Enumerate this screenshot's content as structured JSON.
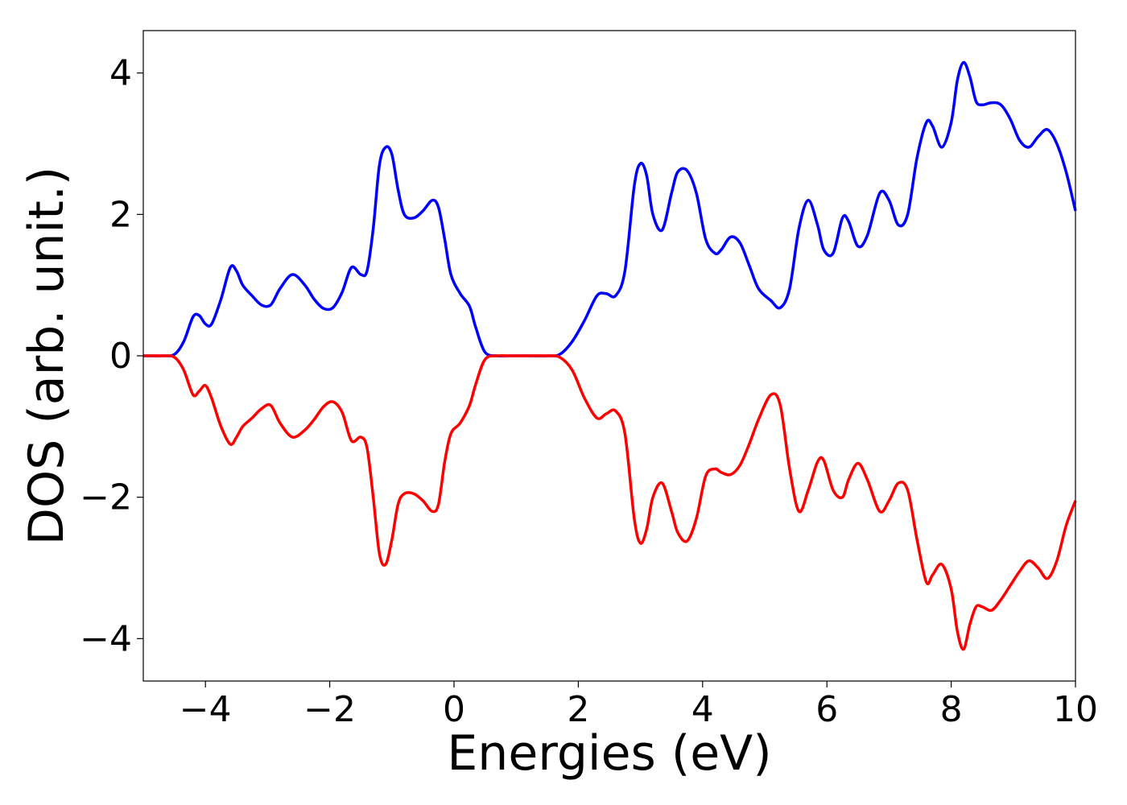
{
  "chart_data": {
    "type": "line",
    "title": "",
    "xlabel": "Energies (eV)",
    "ylabel": "DOS (arb. unit.)",
    "xlim": [
      -5,
      10
    ],
    "ylim": [
      -4.6,
      4.6
    ],
    "xticks": [
      -4,
      -2,
      0,
      2,
      4,
      6,
      8,
      10
    ],
    "xtick_labels": [
      "−4",
      "−2",
      "0",
      "2",
      "4",
      "6",
      "8",
      "10"
    ],
    "yticks": [
      4,
      2,
      0,
      -2,
      -4
    ],
    "ytick_labels": [
      "4",
      "2",
      "0",
      "−2",
      "−4"
    ],
    "grid": false,
    "legend": "none",
    "series": [
      {
        "color": "#0000ff",
        "x": [
          -5.0,
          -4.7,
          -4.5,
          -4.35,
          -4.2,
          -4.1,
          -4.0,
          -3.9,
          -3.75,
          -3.6,
          -3.5,
          -3.4,
          -3.25,
          -3.1,
          -2.95,
          -2.8,
          -2.6,
          -2.4,
          -2.25,
          -2.1,
          -1.95,
          -1.8,
          -1.65,
          -1.5,
          -1.4,
          -1.3,
          -1.2,
          -1.1,
          -1.0,
          -0.9,
          -0.8,
          -0.65,
          -0.5,
          -0.35,
          -0.25,
          -0.15,
          -0.05,
          0.1,
          0.25,
          0.35,
          0.5,
          0.7,
          0.9,
          1.2,
          1.5,
          1.7,
          1.9,
          2.1,
          2.3,
          2.45,
          2.6,
          2.75,
          2.9,
          3.0,
          3.1,
          3.2,
          3.35,
          3.5,
          3.6,
          3.75,
          3.9,
          4.05,
          4.2,
          4.3,
          4.45,
          4.6,
          4.75,
          4.9,
          5.1,
          5.25,
          5.4,
          5.55,
          5.7,
          5.85,
          5.95,
          6.1,
          6.25,
          6.35,
          6.5,
          6.65,
          6.85,
          7.0,
          7.15,
          7.3,
          7.45,
          7.6,
          7.7,
          7.85,
          8.0,
          8.1,
          8.2,
          8.3,
          8.4,
          8.5,
          8.65,
          8.8,
          8.95,
          9.1,
          9.25,
          9.4,
          9.55,
          9.7,
          9.85,
          10.0
        ],
        "y": [
          0.0,
          0.0,
          0.02,
          0.2,
          0.55,
          0.57,
          0.45,
          0.45,
          0.8,
          1.25,
          1.2,
          1.0,
          0.85,
          0.72,
          0.72,
          0.95,
          1.15,
          1.0,
          0.8,
          0.67,
          0.68,
          0.9,
          1.25,
          1.15,
          1.2,
          1.8,
          2.7,
          2.95,
          2.85,
          2.35,
          2.0,
          1.95,
          2.05,
          2.2,
          2.1,
          1.65,
          1.15,
          0.88,
          0.7,
          0.4,
          0.05,
          0.0,
          0.0,
          0.0,
          0.0,
          0.02,
          0.2,
          0.5,
          0.85,
          0.88,
          0.85,
          1.2,
          2.4,
          2.72,
          2.55,
          2.0,
          1.78,
          2.3,
          2.6,
          2.62,
          2.3,
          1.65,
          1.45,
          1.5,
          1.68,
          1.6,
          1.28,
          0.95,
          0.78,
          0.68,
          0.95,
          1.8,
          2.2,
          1.85,
          1.5,
          1.45,
          1.95,
          1.9,
          1.55,
          1.7,
          2.3,
          2.2,
          1.85,
          2.0,
          2.8,
          3.3,
          3.25,
          2.95,
          3.3,
          3.9,
          4.15,
          3.95,
          3.6,
          3.55,
          3.58,
          3.55,
          3.35,
          3.05,
          2.95,
          3.1,
          3.2,
          3.0,
          2.6,
          2.05
        ]
      },
      {
        "color": "#ff0000",
        "x": [
          -5.0,
          -4.7,
          -4.5,
          -4.35,
          -4.2,
          -4.1,
          -4.0,
          -3.9,
          -3.75,
          -3.6,
          -3.5,
          -3.4,
          -3.25,
          -3.1,
          -2.95,
          -2.8,
          -2.6,
          -2.4,
          -2.25,
          -2.1,
          -1.95,
          -1.8,
          -1.65,
          -1.5,
          -1.4,
          -1.3,
          -1.2,
          -1.1,
          -1.0,
          -0.9,
          -0.8,
          -0.65,
          -0.5,
          -0.35,
          -0.25,
          -0.15,
          -0.05,
          0.1,
          0.25,
          0.35,
          0.5,
          0.7,
          0.9,
          1.2,
          1.5,
          1.7,
          1.9,
          2.1,
          2.3,
          2.45,
          2.6,
          2.75,
          2.9,
          3.0,
          3.1,
          3.2,
          3.35,
          3.5,
          3.6,
          3.75,
          3.9,
          4.05,
          4.2,
          4.3,
          4.45,
          4.6,
          4.75,
          4.9,
          5.1,
          5.25,
          5.4,
          5.55,
          5.7,
          5.85,
          5.95,
          6.1,
          6.25,
          6.35,
          6.5,
          6.65,
          6.85,
          7.0,
          7.15,
          7.3,
          7.45,
          7.6,
          7.7,
          7.85,
          8.0,
          8.1,
          8.2,
          8.3,
          8.4,
          8.5,
          8.65,
          8.8,
          8.95,
          9.1,
          9.25,
          9.4,
          9.55,
          9.7,
          9.85,
          10.0
        ],
        "y": [
          0.0,
          0.0,
          -0.02,
          -0.2,
          -0.55,
          -0.5,
          -0.42,
          -0.6,
          -1.0,
          -1.25,
          -1.15,
          -1.0,
          -0.88,
          -0.75,
          -0.7,
          -0.95,
          -1.15,
          -1.05,
          -0.9,
          -0.72,
          -0.65,
          -0.8,
          -1.2,
          -1.15,
          -1.3,
          -2.0,
          -2.8,
          -2.95,
          -2.6,
          -2.1,
          -1.95,
          -1.95,
          -2.05,
          -2.2,
          -2.1,
          -1.5,
          -1.1,
          -0.95,
          -0.7,
          -0.4,
          -0.05,
          0.0,
          0.0,
          0.0,
          0.0,
          -0.02,
          -0.2,
          -0.6,
          -0.88,
          -0.82,
          -0.78,
          -1.1,
          -2.3,
          -2.65,
          -2.45,
          -2.0,
          -1.8,
          -2.2,
          -2.5,
          -2.62,
          -2.3,
          -1.7,
          -1.6,
          -1.65,
          -1.68,
          -1.55,
          -1.25,
          -0.9,
          -0.55,
          -0.7,
          -1.6,
          -2.2,
          -1.9,
          -1.5,
          -1.48,
          -1.9,
          -2.0,
          -1.75,
          -1.52,
          -1.75,
          -2.2,
          -2.05,
          -1.8,
          -1.9,
          -2.6,
          -3.2,
          -3.1,
          -2.95,
          -3.3,
          -3.9,
          -4.15,
          -3.8,
          -3.55,
          -3.55,
          -3.6,
          -3.45,
          -3.25,
          -3.05,
          -2.9,
          -3.0,
          -3.15,
          -2.9,
          -2.4,
          -2.05
        ]
      }
    ]
  }
}
